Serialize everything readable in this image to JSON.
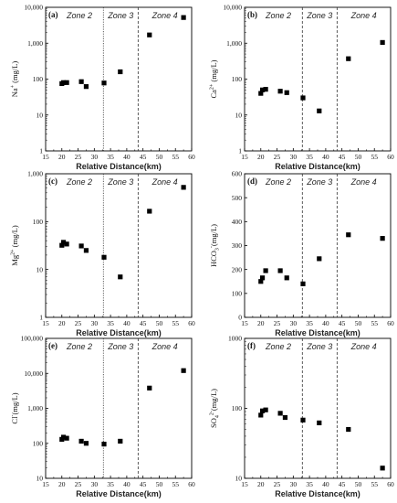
{
  "chart_data": [
    {
      "type": "scatter",
      "panel": "(a)",
      "ylabel_main": "Na",
      "ylabel_sup": "+",
      "ylabel_sub": "",
      "ylabel_unit": " (mg/L)",
      "xlabel": "Relative Distance(km)",
      "xlim": [
        15,
        60
      ],
      "ylog": true,
      "ylim": [
        1,
        10000
      ],
      "yticks": [
        "1",
        "10",
        "100",
        "1,000",
        "10,000"
      ],
      "xticks": [
        "15",
        "20",
        "25",
        "30",
        "35",
        "40",
        "45",
        "50",
        "55",
        "60"
      ],
      "zones": [
        "Zone 2",
        "Zone 3",
        "Zone 4"
      ],
      "dividers": [
        {
          "x": 32.8,
          "style": "dotted"
        },
        {
          "x": 43.5,
          "style": "dashed"
        }
      ],
      "points": [
        {
          "x": 20,
          "y": 75
        },
        {
          "x": 20.5,
          "y": 80
        },
        {
          "x": 21.5,
          "y": 80
        },
        {
          "x": 26,
          "y": 85
        },
        {
          "x": 27.5,
          "y": 62
        },
        {
          "x": 33,
          "y": 78
        },
        {
          "x": 38,
          "y": 160
        },
        {
          "x": 47,
          "y": 1700
        },
        {
          "x": 57.5,
          "y": 5200
        }
      ]
    },
    {
      "type": "scatter",
      "panel": "(b)",
      "ylabel_main": "Ca",
      "ylabel_sup": "2+",
      "ylabel_sub": "",
      "ylabel_unit": " (mg/L)",
      "xlabel": "Relative Distance(km)",
      "xlim": [
        15,
        60
      ],
      "ylog": true,
      "ylim": [
        1,
        10000
      ],
      "yticks": [
        "1",
        "10",
        "100",
        "1,000",
        "10,000"
      ],
      "xticks": [
        "15",
        "20",
        "25",
        "30",
        "35",
        "40",
        "45",
        "50",
        "55",
        "60"
      ],
      "zones": [
        "Zone 2",
        "Zone 3",
        "Zone 4"
      ],
      "dividers": [
        {
          "x": 32.8,
          "style": "dashed"
        },
        {
          "x": 43.5,
          "style": "dashed"
        }
      ],
      "points": [
        {
          "x": 20,
          "y": 40
        },
        {
          "x": 20.5,
          "y": 50
        },
        {
          "x": 21.5,
          "y": 52
        },
        {
          "x": 26,
          "y": 46
        },
        {
          "x": 28,
          "y": 42
        },
        {
          "x": 33,
          "y": 30
        },
        {
          "x": 38,
          "y": 13
        },
        {
          "x": 47,
          "y": 370
        },
        {
          "x": 57.5,
          "y": 1050
        }
      ]
    },
    {
      "type": "scatter",
      "panel": "(c)",
      "ylabel_main": "Mg",
      "ylabel_sup": "2+",
      "ylabel_sub": "",
      "ylabel_unit": " (mg/L)",
      "xlabel": "Relative Distance(km)",
      "xlim": [
        15,
        60
      ],
      "ylog": true,
      "ylim": [
        1,
        1000
      ],
      "yticks": [
        "1",
        "10",
        "100",
        "1,000"
      ],
      "xticks": [
        "15",
        "20",
        "25",
        "30",
        "35",
        "40",
        "45",
        "50",
        "55",
        "60"
      ],
      "zones": [
        "Zone 2",
        "Zone 3",
        "Zone 4"
      ],
      "dividers": [
        {
          "x": 32.8,
          "style": "dotted"
        },
        {
          "x": 43.5,
          "style": "dashed"
        }
      ],
      "points": [
        {
          "x": 20,
          "y": 32
        },
        {
          "x": 20.5,
          "y": 37
        },
        {
          "x": 21.5,
          "y": 34
        },
        {
          "x": 26,
          "y": 31
        },
        {
          "x": 27.5,
          "y": 25
        },
        {
          "x": 33,
          "y": 18
        },
        {
          "x": 38,
          "y": 7
        },
        {
          "x": 47,
          "y": 165
        },
        {
          "x": 57.5,
          "y": 520
        }
      ]
    },
    {
      "type": "scatter",
      "panel": "(d)",
      "ylabel_main": "HCO",
      "ylabel_sup": "-",
      "ylabel_sub": "3",
      "ylabel_unit": "(mg/L)",
      "xlabel": "Relative Distance(km)",
      "xlim": [
        15,
        60
      ],
      "ylog": false,
      "ylim": [
        0,
        600
      ],
      "yticks": [
        "0",
        "100",
        "200",
        "300",
        "400",
        "500",
        "600"
      ],
      "xticks": [
        "15",
        "20",
        "25",
        "30",
        "35",
        "40",
        "45",
        "50",
        "55",
        "60"
      ],
      "zones": [
        "Zone 2",
        "Zone 3",
        "Zone 4"
      ],
      "dividers": [
        {
          "x": 32.8,
          "style": "dashed"
        },
        {
          "x": 43.5,
          "style": "dashed"
        }
      ],
      "points": [
        {
          "x": 20,
          "y": 150
        },
        {
          "x": 20.5,
          "y": 165
        },
        {
          "x": 21.5,
          "y": 195
        },
        {
          "x": 26,
          "y": 195
        },
        {
          "x": 28,
          "y": 165
        },
        {
          "x": 33,
          "y": 140
        },
        {
          "x": 38,
          "y": 245
        },
        {
          "x": 47,
          "y": 345
        },
        {
          "x": 57.5,
          "y": 330
        }
      ]
    },
    {
      "type": "scatter",
      "panel": "(e)",
      "ylabel_main": "Cl",
      "ylabel_sup": "-",
      "ylabel_sub": "",
      "ylabel_unit": "(mg/L)",
      "xlabel": "Relative Distance(km)",
      "xlim": [
        15,
        60
      ],
      "ylog": true,
      "ylim": [
        10,
        100000
      ],
      "yticks": [
        "10",
        "100",
        "1,000",
        "10,000",
        "100,000"
      ],
      "xticks": [
        "15",
        "20",
        "25",
        "30",
        "35",
        "40",
        "45",
        "50",
        "55",
        "60"
      ],
      "zones": [
        "Zone 2",
        "Zone 3",
        "Zone 4"
      ],
      "dividers": [
        {
          "x": 32.8,
          "style": "dotted"
        },
        {
          "x": 43.5,
          "style": "dashed"
        }
      ],
      "points": [
        {
          "x": 20,
          "y": 130
        },
        {
          "x": 20.5,
          "y": 150
        },
        {
          "x": 21.5,
          "y": 140
        },
        {
          "x": 26,
          "y": 115
        },
        {
          "x": 27.5,
          "y": 100
        },
        {
          "x": 33,
          "y": 95
        },
        {
          "x": 38,
          "y": 115
        },
        {
          "x": 47,
          "y": 3800
        },
        {
          "x": 57.5,
          "y": 12000
        }
      ]
    },
    {
      "type": "scatter",
      "panel": "(f)",
      "ylabel_main": "SO",
      "ylabel_sup": "2-",
      "ylabel_sub": "4",
      "ylabel_unit": "(mg/L)",
      "xlabel": "Relative Distance(km)",
      "xlim": [
        15,
        60
      ],
      "ylog": true,
      "ylim": [
        10,
        1000
      ],
      "yticks": [
        "10",
        "100",
        "1000"
      ],
      "xticks": [
        "15",
        "20",
        "25",
        "30",
        "35",
        "40",
        "45",
        "50",
        "55",
        "60"
      ],
      "zones": [
        "Zone 2",
        "Zone 3",
        "Zone 4"
      ],
      "dividers": [
        {
          "x": 32.8,
          "style": "dashed"
        },
        {
          "x": 43.5,
          "style": "dashed"
        }
      ],
      "points": [
        {
          "x": 20,
          "y": 80
        },
        {
          "x": 20.5,
          "y": 92
        },
        {
          "x": 21.5,
          "y": 95
        },
        {
          "x": 26,
          "y": 85
        },
        {
          "x": 27.5,
          "y": 74
        },
        {
          "x": 33,
          "y": 68
        },
        {
          "x": 38,
          "y": 62
        },
        {
          "x": 47,
          "y": 50
        },
        {
          "x": 57.5,
          "y": 14
        }
      ]
    }
  ]
}
